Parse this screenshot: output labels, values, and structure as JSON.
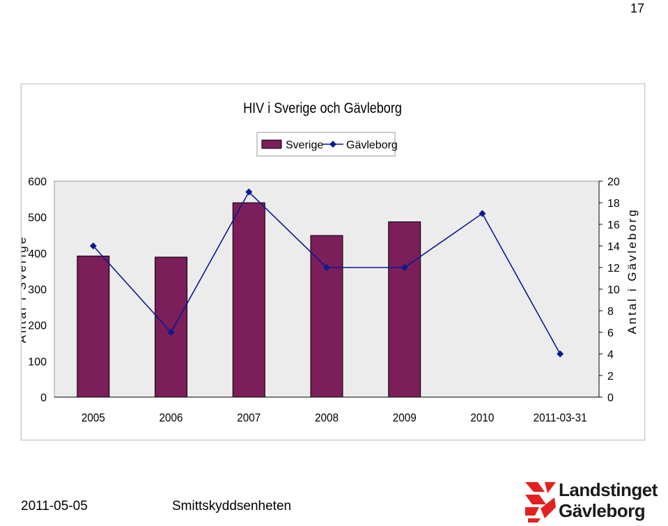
{
  "page_number": "17",
  "footer": {
    "date": "2011-05-05",
    "unit": "Smittskyddsenheten"
  },
  "logo": {
    "line1": "Landstinget",
    "line2": "Gävleborg",
    "mark_color": "#e4201f"
  },
  "colors": {
    "bar_fill": "#7b1e5a",
    "line": "#0b1a8c",
    "plot_bg": "#ececec"
  },
  "chart_data": {
    "type": "bar",
    "title": "HIV i Sverige och Gävleborg",
    "categories": [
      "2005",
      "2006",
      "2007",
      "2008",
      "2009",
      "2010",
      "2011-03-31"
    ],
    "series": [
      {
        "name": "Sverige",
        "type": "bar",
        "axis": "left",
        "values": [
          392,
          389,
          540,
          449,
          487,
          null,
          null
        ]
      },
      {
        "name": "Gävleborg",
        "type": "line",
        "axis": "right",
        "values": [
          14,
          6,
          19,
          12,
          12,
          17,
          4
        ]
      }
    ],
    "ylabel": "Antal i Sverige",
    "y2label": "Antal i Gävleborg",
    "ylim": [
      0,
      600
    ],
    "yticks": [
      0,
      100,
      200,
      300,
      400,
      500,
      600
    ],
    "y2lim": [
      0,
      20
    ],
    "y2ticks": [
      0,
      2,
      4,
      6,
      8,
      10,
      12,
      14,
      16,
      18,
      20
    ],
    "grid": false,
    "legend_position": "top-center"
  }
}
